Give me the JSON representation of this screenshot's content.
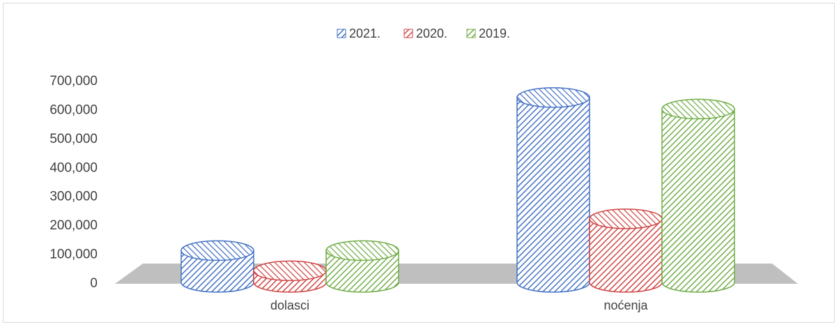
{
  "chart_data": {
    "type": "bar",
    "style": "3d-cylinder",
    "categories": [
      "dolasci",
      "noćenja"
    ],
    "series": [
      {
        "name": "2021.",
        "values": [
          110000,
          640000
        ],
        "color": "#4472c4"
      },
      {
        "name": "2020.",
        "values": [
          40000,
          220000
        ],
        "color": "#d04545"
      },
      {
        "name": "2019.",
        "values": [
          110000,
          600000
        ],
        "color": "#70ad47"
      }
    ],
    "yticks": [
      "0",
      "100,000",
      "200,000",
      "300,000",
      "400,000",
      "500,000",
      "600,000",
      "700,000"
    ],
    "ylim": [
      0,
      700000
    ],
    "legend_position": "top-center",
    "grid": false
  }
}
